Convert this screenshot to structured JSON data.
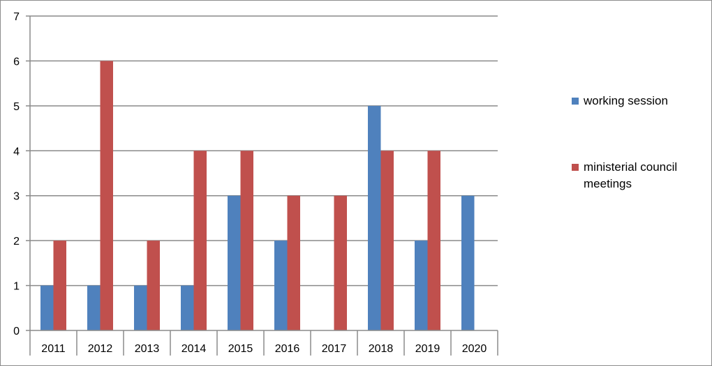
{
  "chart_data": {
    "type": "bar",
    "categories": [
      "2011",
      "2012",
      "2013",
      "2014",
      "2015",
      "2016",
      "2017",
      "2018",
      "2019",
      "2020"
    ],
    "series": [
      {
        "name": "working session",
        "color": "#4f81bd",
        "values": [
          1,
          1,
          1,
          1,
          3,
          2,
          0,
          5,
          2,
          3
        ]
      },
      {
        "name": "ministerial council meetings",
        "color": "#c0504d",
        "values": [
          2,
          6,
          2,
          4,
          4,
          3,
          3,
          4,
          4,
          0
        ]
      }
    ],
    "ylim": [
      0,
      7
    ],
    "yticks": [
      0,
      1,
      2,
      3,
      4,
      5,
      6,
      7
    ],
    "grid": true,
    "legend_position": "right"
  }
}
